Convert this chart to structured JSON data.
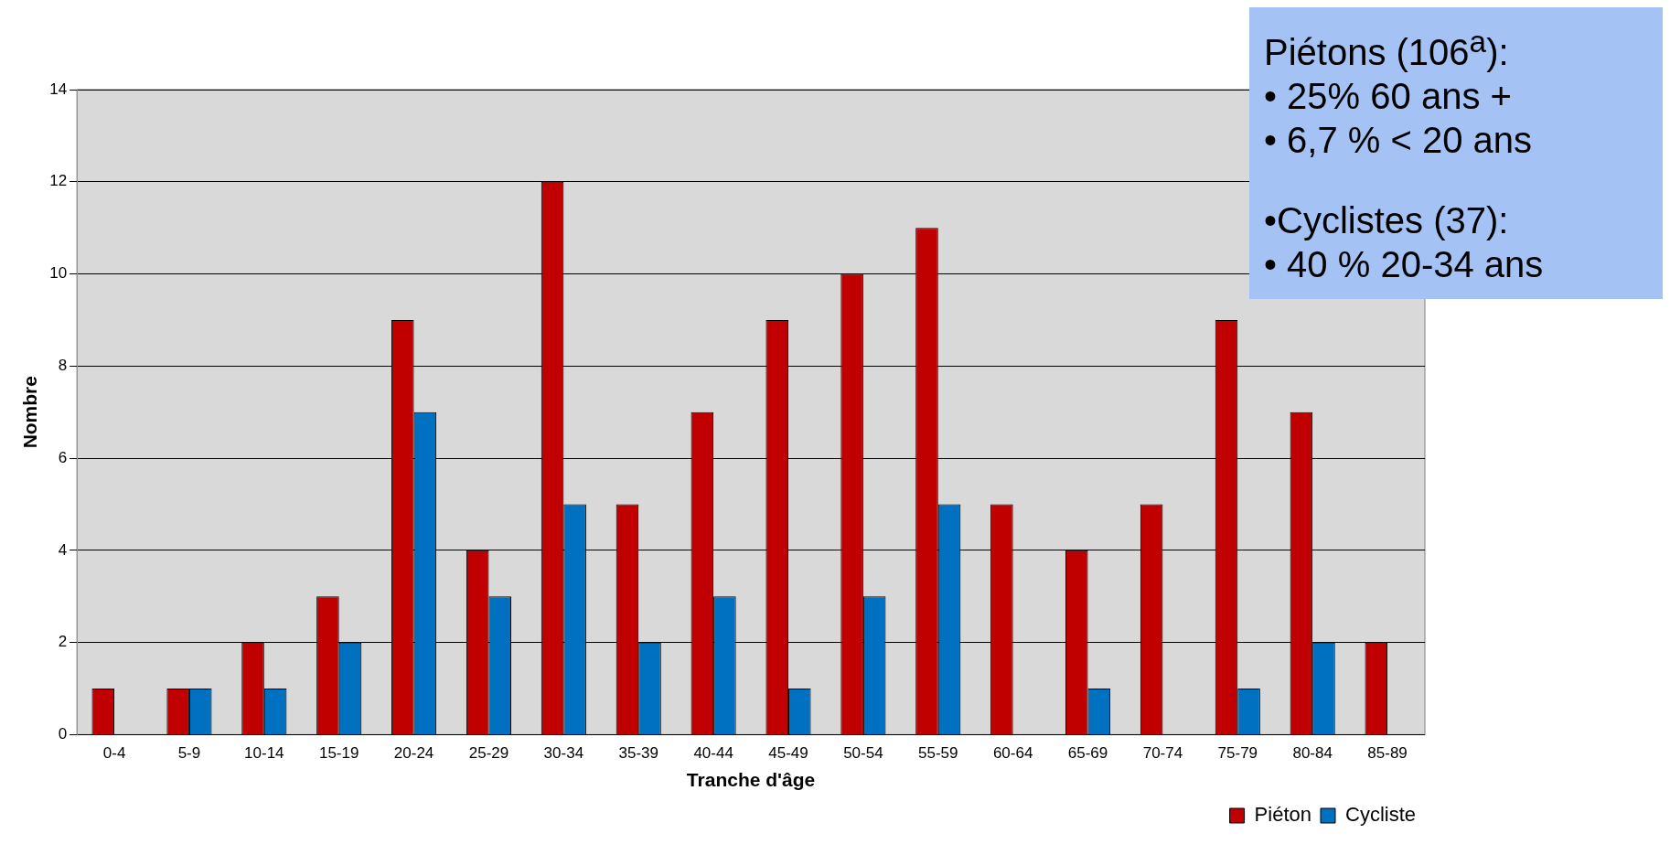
{
  "chart_data": {
    "type": "bar",
    "xlabel": "Tranche d'âge",
    "ylabel": "Nombre",
    "categories": [
      "0-4",
      "5-9",
      "10-14",
      "15-19",
      "20-24",
      "25-29",
      "30-34",
      "35-39",
      "40-44",
      "45-49",
      "50-54",
      "55-59",
      "60-64",
      "65-69",
      "70-74",
      "75-79",
      "80-84",
      "85-89"
    ],
    "series": [
      {
        "name": "Piéton",
        "color": "#c00000",
        "values": [
          1,
          1,
          2,
          3,
          9,
          4,
          12,
          5,
          7,
          9,
          10,
          11,
          5,
          4,
          5,
          9,
          7,
          2
        ]
      },
      {
        "name": "Cycliste",
        "color": "#0070c0",
        "values": [
          0,
          1,
          1,
          2,
          7,
          3,
          5,
          2,
          3,
          1,
          3,
          5,
          0,
          1,
          0,
          1,
          2,
          0
        ]
      }
    ],
    "ylim": [
      0,
      14
    ],
    "yticks": [
      0,
      2,
      4,
      6,
      8,
      10,
      12,
      14
    ],
    "grid": "y",
    "legend": "bottom right",
    "annotations": [
      "Piétons (106$^{a}$):",
      "• 25% 60 ans +",
      "• 6,7 % < 20 ans",
      "•Cyclistes (37):",
      "• 40 % 20-34 ans"
    ]
  }
}
